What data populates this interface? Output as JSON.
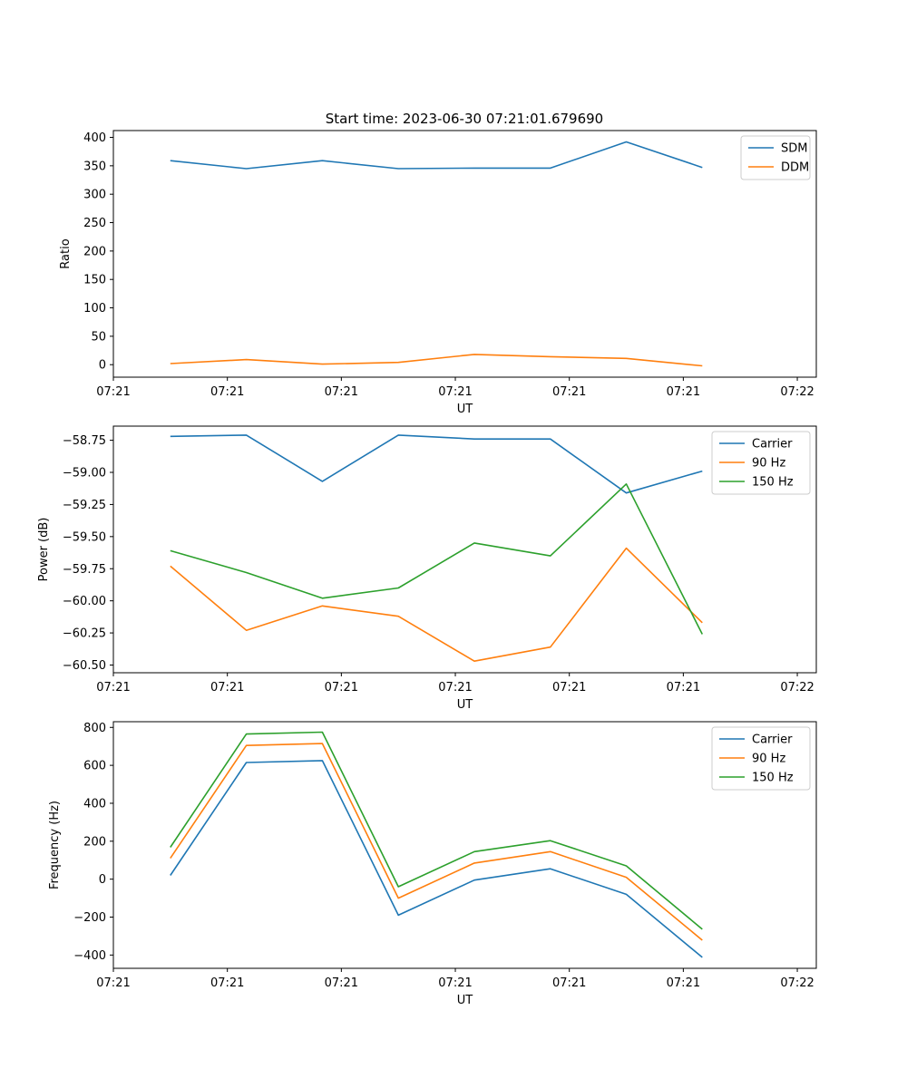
{
  "figure_title": "Start time: 2023-06-30 07:21:01.679690",
  "colors": {
    "blue": "#1f77b4",
    "orange": "#ff7f0e",
    "green": "#2ca02c"
  },
  "x_tick_labels": [
    "07:21",
    "07:21",
    "07:21",
    "07:21",
    "07:21",
    "07:21",
    "07:22"
  ],
  "chart_data": [
    {
      "type": "line",
      "title": "Start time: 2023-06-30 07:21:01.679690",
      "xlabel": "UT",
      "ylabel": "Ratio",
      "x": [
        1,
        2,
        3,
        4,
        5,
        6,
        7,
        8
      ],
      "xlim": [
        0.25,
        9.5
      ],
      "ylim": [
        -22,
        412
      ],
      "yticks": [
        0,
        50,
        100,
        150,
        200,
        250,
        300,
        350,
        400
      ],
      "ytick_labels": [
        "0",
        "50",
        "100",
        "150",
        "200",
        "250",
        "300",
        "350",
        "400"
      ],
      "legend_position": "top-right",
      "series": [
        {
          "name": "SDM",
          "color": "#1f77b4",
          "values": [
            359,
            345,
            359,
            345,
            346,
            346,
            392,
            347
          ]
        },
        {
          "name": "DDM",
          "color": "#ff7f0e",
          "values": [
            2,
            9,
            1,
            4,
            18,
            14,
            11,
            -2
          ]
        }
      ]
    },
    {
      "type": "line",
      "title": "",
      "xlabel": "UT",
      "ylabel": "Power (dB)",
      "x": [
        1,
        2,
        3,
        4,
        5,
        6,
        7,
        8
      ],
      "xlim": [
        0.25,
        9.5
      ],
      "ylim": [
        -60.56,
        -58.64
      ],
      "yticks": [
        -60.5,
        -60.25,
        -60.0,
        -59.75,
        -59.5,
        -59.25,
        -59.0,
        -58.75
      ],
      "ytick_labels": [
        "−60.50",
        "−60.25",
        "−60.00",
        "−59.75",
        "−59.50",
        "−59.25",
        "−59.00",
        "−58.75"
      ],
      "legend_position": "top-right",
      "series": [
        {
          "name": "Carrier",
          "color": "#1f77b4",
          "values": [
            -58.72,
            -58.71,
            -59.07,
            -58.71,
            -58.74,
            -58.74,
            -59.16,
            -58.99
          ]
        },
        {
          "name": "90 Hz",
          "color": "#ff7f0e",
          "values": [
            -59.73,
            -60.23,
            -60.04,
            -60.12,
            -60.47,
            -60.36,
            -59.59,
            -60.17
          ]
        },
        {
          "name": "150 Hz",
          "color": "#2ca02c",
          "values": [
            -59.61,
            -59.78,
            -59.98,
            -59.9,
            -59.55,
            -59.65,
            -59.09,
            -60.26
          ]
        }
      ]
    },
    {
      "type": "line",
      "title": "",
      "xlabel": "UT",
      "ylabel": "Frequency (Hz)",
      "x": [
        1,
        2,
        3,
        4,
        5,
        6,
        7,
        8
      ],
      "xlim": [
        0.25,
        9.5
      ],
      "ylim": [
        -470,
        830
      ],
      "yticks": [
        -400,
        -200,
        0,
        200,
        400,
        600,
        800
      ],
      "ytick_labels": [
        "−400",
        "−200",
        "0",
        "200",
        "400",
        "600",
        "800"
      ],
      "legend_position": "top-right",
      "series": [
        {
          "name": "Carrier",
          "color": "#1f77b4",
          "values": [
            20,
            615,
            625,
            -190,
            -5,
            55,
            -80,
            -412
          ]
        },
        {
          "name": "90 Hz",
          "color": "#ff7f0e",
          "values": [
            110,
            705,
            715,
            -100,
            85,
            145,
            10,
            -322
          ]
        },
        {
          "name": "150 Hz",
          "color": "#2ca02c",
          "values": [
            168,
            765,
            775,
            -40,
            145,
            203,
            70,
            -264
          ]
        }
      ]
    }
  ]
}
